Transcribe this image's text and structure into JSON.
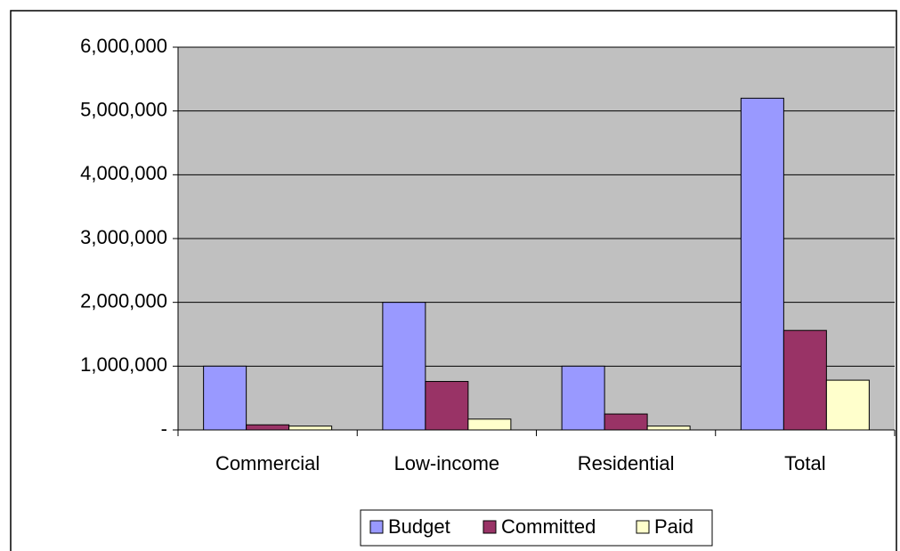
{
  "chart_data": {
    "type": "bar",
    "categories": [
      "Commercial",
      "Low-income",
      "Residential",
      "Total"
    ],
    "series": [
      {
        "name": "Budget",
        "color": "#9999ff",
        "values": [
          1000000,
          2000000,
          1000000,
          5200000
        ]
      },
      {
        "name": "Committed",
        "color": "#993366",
        "values": [
          80000,
          760000,
          250000,
          1560000
        ]
      },
      {
        "name": "Paid",
        "color": "#ffffcc",
        "values": [
          60000,
          170000,
          60000,
          780000
        ]
      }
    ],
    "ylim": [
      0,
      6000000
    ],
    "yticks": [
      {
        "value": 0,
        "label": "-"
      },
      {
        "value": 1000000,
        "label": "1,000,000"
      },
      {
        "value": 2000000,
        "label": "2,000,000"
      },
      {
        "value": 3000000,
        "label": "3,000,000"
      },
      {
        "value": 4000000,
        "label": "4,000,000"
      },
      {
        "value": 5000000,
        "label": "5,000,000"
      },
      {
        "value": 6000000,
        "label": "6,000,000"
      }
    ],
    "grid": true,
    "legend": "bottom"
  }
}
